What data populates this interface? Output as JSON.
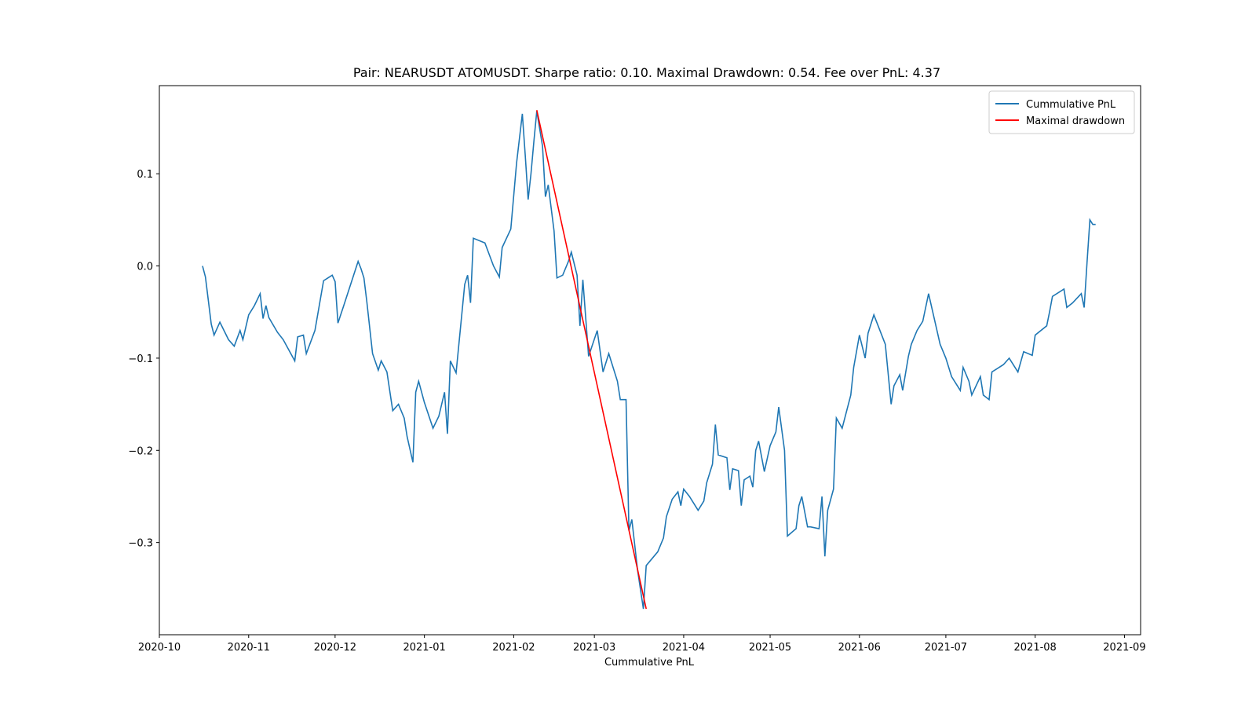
{
  "chart_data": {
    "type": "line",
    "title": "Pair: NEARUSDT ATOMUSDT. Sharpe ratio: 0.10. Maximal Drawdown: 0.54. Fee over PnL: 4.37",
    "xlabel": "Cummulative PnL",
    "xlim": [
      18536,
      18876.6
    ],
    "xticks": [
      {
        "value": 18536,
        "label": "2020-10"
      },
      {
        "value": 18567,
        "label": "2020-11"
      },
      {
        "value": 18597,
        "label": "2020-12"
      },
      {
        "value": 18628,
        "label": "2021-01"
      },
      {
        "value": 18659,
        "label": "2021-02"
      },
      {
        "value": 18687,
        "label": "2021-03"
      },
      {
        "value": 18718,
        "label": "2021-04"
      },
      {
        "value": 18748,
        "label": "2021-05"
      },
      {
        "value": 18779,
        "label": "2021-06"
      },
      {
        "value": 18809,
        "label": "2021-07"
      },
      {
        "value": 18840,
        "label": "2021-08"
      },
      {
        "value": 18871,
        "label": "2021-09"
      }
    ],
    "ylim": [
      -0.4,
      0.1956
    ],
    "yticks": [
      {
        "value": -0.3,
        "label": "−0.3"
      },
      {
        "value": -0.2,
        "label": "−0.2"
      },
      {
        "value": -0.1,
        "label": "−0.1"
      },
      {
        "value": 0,
        "label": "0.0"
      },
      {
        "value": 0.1,
        "label": "0.1"
      }
    ],
    "legend": "upper right",
    "series": [
      {
        "name": "Cummulative PnL",
        "color": "#1f77b4",
        "x": [
          18551,
          18552,
          18554,
          18555,
          18557,
          18560,
          18562,
          18564,
          18565,
          18567,
          18569,
          18571,
          18572,
          18573,
          18574,
          18577,
          18579,
          18583,
          18584,
          18586,
          18587,
          18590,
          18593,
          18596,
          18597,
          18598,
          18600,
          18605,
          18606,
          18607,
          18608,
          18610,
          18612,
          18613,
          18615,
          18617,
          18619,
          18621,
          18622,
          18624,
          18625,
          18626,
          18628,
          18631,
          18633,
          18635,
          18636,
          18637,
          18639,
          18642,
          18643,
          18644,
          18645,
          18649,
          18652,
          18654,
          18655,
          18658,
          18660,
          18662,
          18663,
          18664,
          18665,
          18666,
          18667,
          18669,
          18670,
          18671,
          18673,
          18674,
          18676,
          18678,
          18679,
          18681,
          18682,
          18683,
          18685,
          18688,
          18690,
          18692,
          18695,
          18696,
          18698,
          18699,
          18700,
          18702,
          18704,
          18705,
          18709,
          18711,
          18712,
          18714,
          18716,
          18717,
          18718,
          18720,
          18723,
          18725,
          18726,
          18728,
          18729,
          18730,
          18733,
          18734,
          18735,
          18737,
          18738,
          18739,
          18741,
          18742,
          18743,
          18744,
          18746,
          18748,
          18750,
          18751,
          18753,
          18754,
          18757,
          18758,
          18759,
          18761,
          18762,
          18765,
          18766,
          18767,
          18768,
          18770,
          18771,
          18773,
          18776,
          18777,
          18779,
          18781,
          18782,
          18784,
          18788,
          18790,
          18791,
          18793,
          18794,
          18796,
          18797,
          18799,
          18801,
          18803,
          18807,
          18809,
          18811,
          18814,
          18815,
          18817,
          18818,
          18821,
          18822,
          18824,
          18825,
          18829,
          18831,
          18834,
          18836,
          18839,
          18840,
          18844,
          18845,
          18846,
          18850,
          18851,
          18853,
          18856,
          18857,
          18858,
          18859,
          18860,
          18861
        ],
        "values": [
          0.0,
          -0.012,
          -0.063,
          -0.075,
          -0.061,
          -0.08,
          -0.087,
          -0.07,
          -0.08,
          -0.053,
          -0.043,
          -0.03,
          -0.057,
          -0.043,
          -0.056,
          -0.072,
          -0.08,
          -0.103,
          -0.077,
          -0.075,
          -0.095,
          -0.07,
          -0.016,
          -0.01,
          -0.017,
          -0.062,
          -0.043,
          0.005,
          -0.003,
          -0.013,
          -0.038,
          -0.095,
          -0.113,
          -0.103,
          -0.115,
          -0.157,
          -0.15,
          -0.165,
          -0.185,
          -0.213,
          -0.137,
          -0.125,
          -0.148,
          -0.176,
          -0.163,
          -0.137,
          -0.182,
          -0.103,
          -0.116,
          -0.02,
          -0.01,
          -0.04,
          0.03,
          0.025,
          0.0,
          -0.012,
          0.02,
          0.04,
          0.112,
          0.165,
          0.12,
          0.072,
          0.1,
          0.135,
          0.168,
          0.13,
          0.075,
          0.088,
          0.038,
          -0.013,
          -0.01,
          0.005,
          0.015,
          -0.01,
          -0.065,
          -0.015,
          -0.098,
          -0.07,
          -0.115,
          -0.095,
          -0.125,
          -0.145,
          -0.145,
          -0.287,
          -0.275,
          -0.33,
          -0.372,
          -0.325,
          -0.31,
          -0.295,
          -0.272,
          -0.253,
          -0.245,
          -0.26,
          -0.242,
          -0.25,
          -0.265,
          -0.255,
          -0.235,
          -0.215,
          -0.172,
          -0.205,
          -0.208,
          -0.243,
          -0.22,
          -0.222,
          -0.26,
          -0.232,
          -0.228,
          -0.24,
          -0.2,
          -0.19,
          -0.223,
          -0.195,
          -0.18,
          -0.153,
          -0.2,
          -0.293,
          -0.285,
          -0.26,
          -0.25,
          -0.283,
          -0.283,
          -0.285,
          -0.25,
          -0.315,
          -0.265,
          -0.242,
          -0.165,
          -0.176,
          -0.14,
          -0.11,
          -0.075,
          -0.1,
          -0.073,
          -0.053,
          -0.085,
          -0.15,
          -0.13,
          -0.118,
          -0.135,
          -0.098,
          -0.085,
          -0.07,
          -0.06,
          -0.03,
          -0.085,
          -0.1,
          -0.12,
          -0.135,
          -0.11,
          -0.125,
          -0.14,
          -0.12,
          -0.14,
          -0.145,
          -0.115,
          -0.107,
          -0.1,
          -0.115,
          -0.093,
          -0.097,
          -0.075,
          -0.065,
          -0.05,
          -0.033,
          -0.025,
          -0.045,
          -0.04,
          -0.03,
          -0.045,
          0.003,
          0.05,
          0.045,
          0.045
        ]
      },
      {
        "name": "Maximal drawdown",
        "color": "#ff0000",
        "x": [
          18667,
          18705
        ],
        "values": [
          0.169,
          -0.372
        ]
      }
    ]
  }
}
